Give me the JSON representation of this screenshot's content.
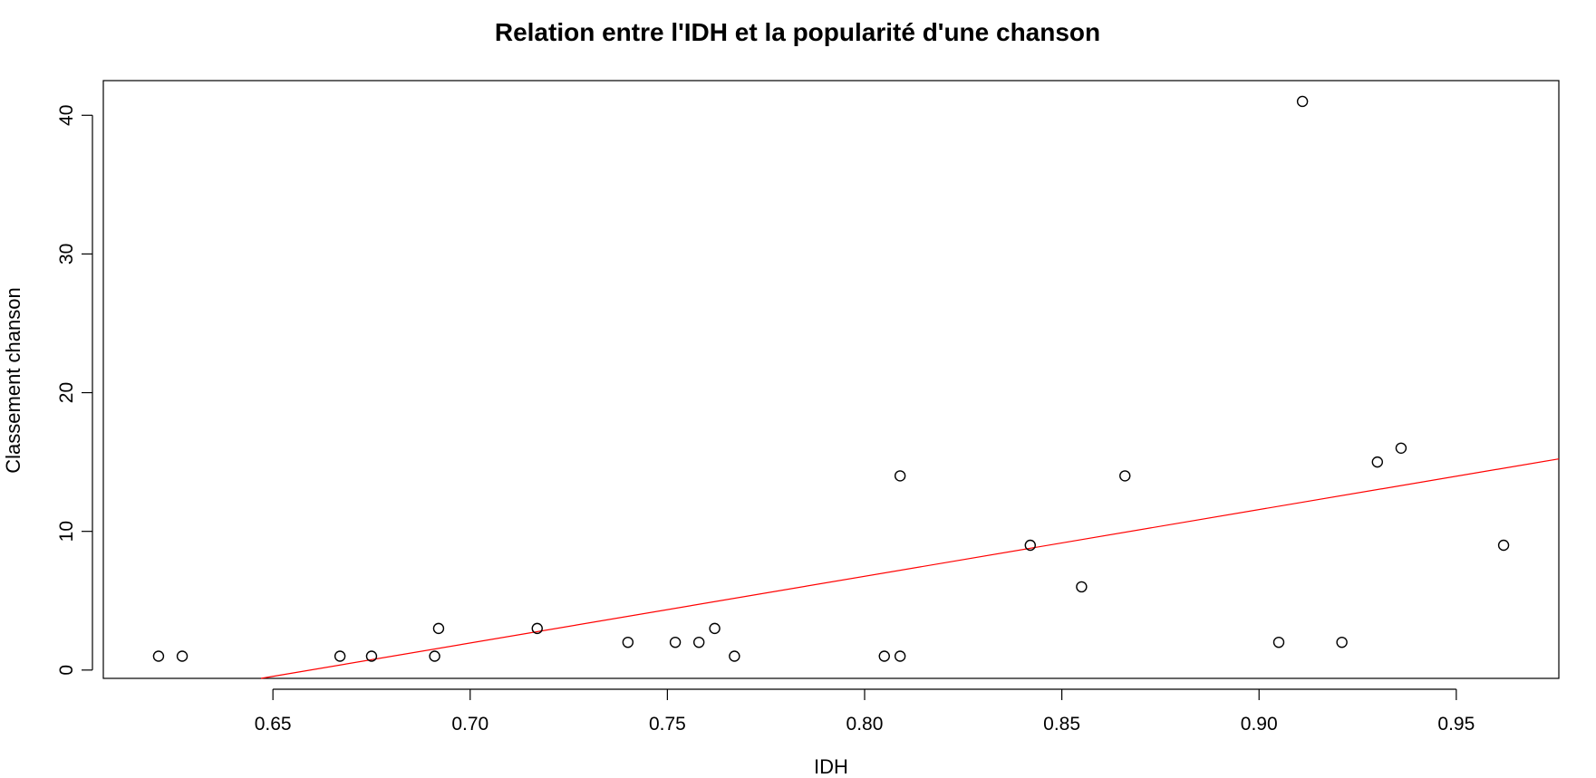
{
  "chart_data": {
    "type": "scatter",
    "title": "Relation entre l'IDH et la popularité d'une chanson",
    "xlabel": "IDH",
    "ylabel": "Classement chanson",
    "xlim": [
      0.607,
      0.976
    ],
    "ylim": [
      -0.6,
      42.5
    ],
    "x_ticks": [
      0.65,
      0.7,
      0.75,
      0.8,
      0.85,
      0.9,
      0.95
    ],
    "x_tick_labels": [
      "0.65",
      "0.70",
      "0.75",
      "0.80",
      "0.85",
      "0.90",
      "0.95"
    ],
    "y_ticks": [
      0,
      10,
      20,
      30,
      40
    ],
    "y_tick_labels": [
      "0",
      "10",
      "20",
      "30",
      "40"
    ],
    "grid": false,
    "points": [
      {
        "x": 0.621,
        "y": 1
      },
      {
        "x": 0.627,
        "y": 1
      },
      {
        "x": 0.667,
        "y": 1
      },
      {
        "x": 0.675,
        "y": 1
      },
      {
        "x": 0.691,
        "y": 1
      },
      {
        "x": 0.692,
        "y": 3
      },
      {
        "x": 0.717,
        "y": 3
      },
      {
        "x": 0.74,
        "y": 2
      },
      {
        "x": 0.752,
        "y": 2
      },
      {
        "x": 0.758,
        "y": 2
      },
      {
        "x": 0.762,
        "y": 3
      },
      {
        "x": 0.767,
        "y": 1
      },
      {
        "x": 0.805,
        "y": 1
      },
      {
        "x": 0.809,
        "y": 1
      },
      {
        "x": 0.809,
        "y": 14
      },
      {
        "x": 0.842,
        "y": 9
      },
      {
        "x": 0.855,
        "y": 6
      },
      {
        "x": 0.866,
        "y": 14
      },
      {
        "x": 0.905,
        "y": 2
      },
      {
        "x": 0.911,
        "y": 41
      },
      {
        "x": 0.921,
        "y": 2
      },
      {
        "x": 0.93,
        "y": 15
      },
      {
        "x": 0.936,
        "y": 16
      },
      {
        "x": 0.962,
        "y": 9
      }
    ],
    "fit_line": {
      "color": "#ff0000",
      "intercept": -31.72,
      "slope": 48.1
    },
    "point_color": "#000000"
  }
}
